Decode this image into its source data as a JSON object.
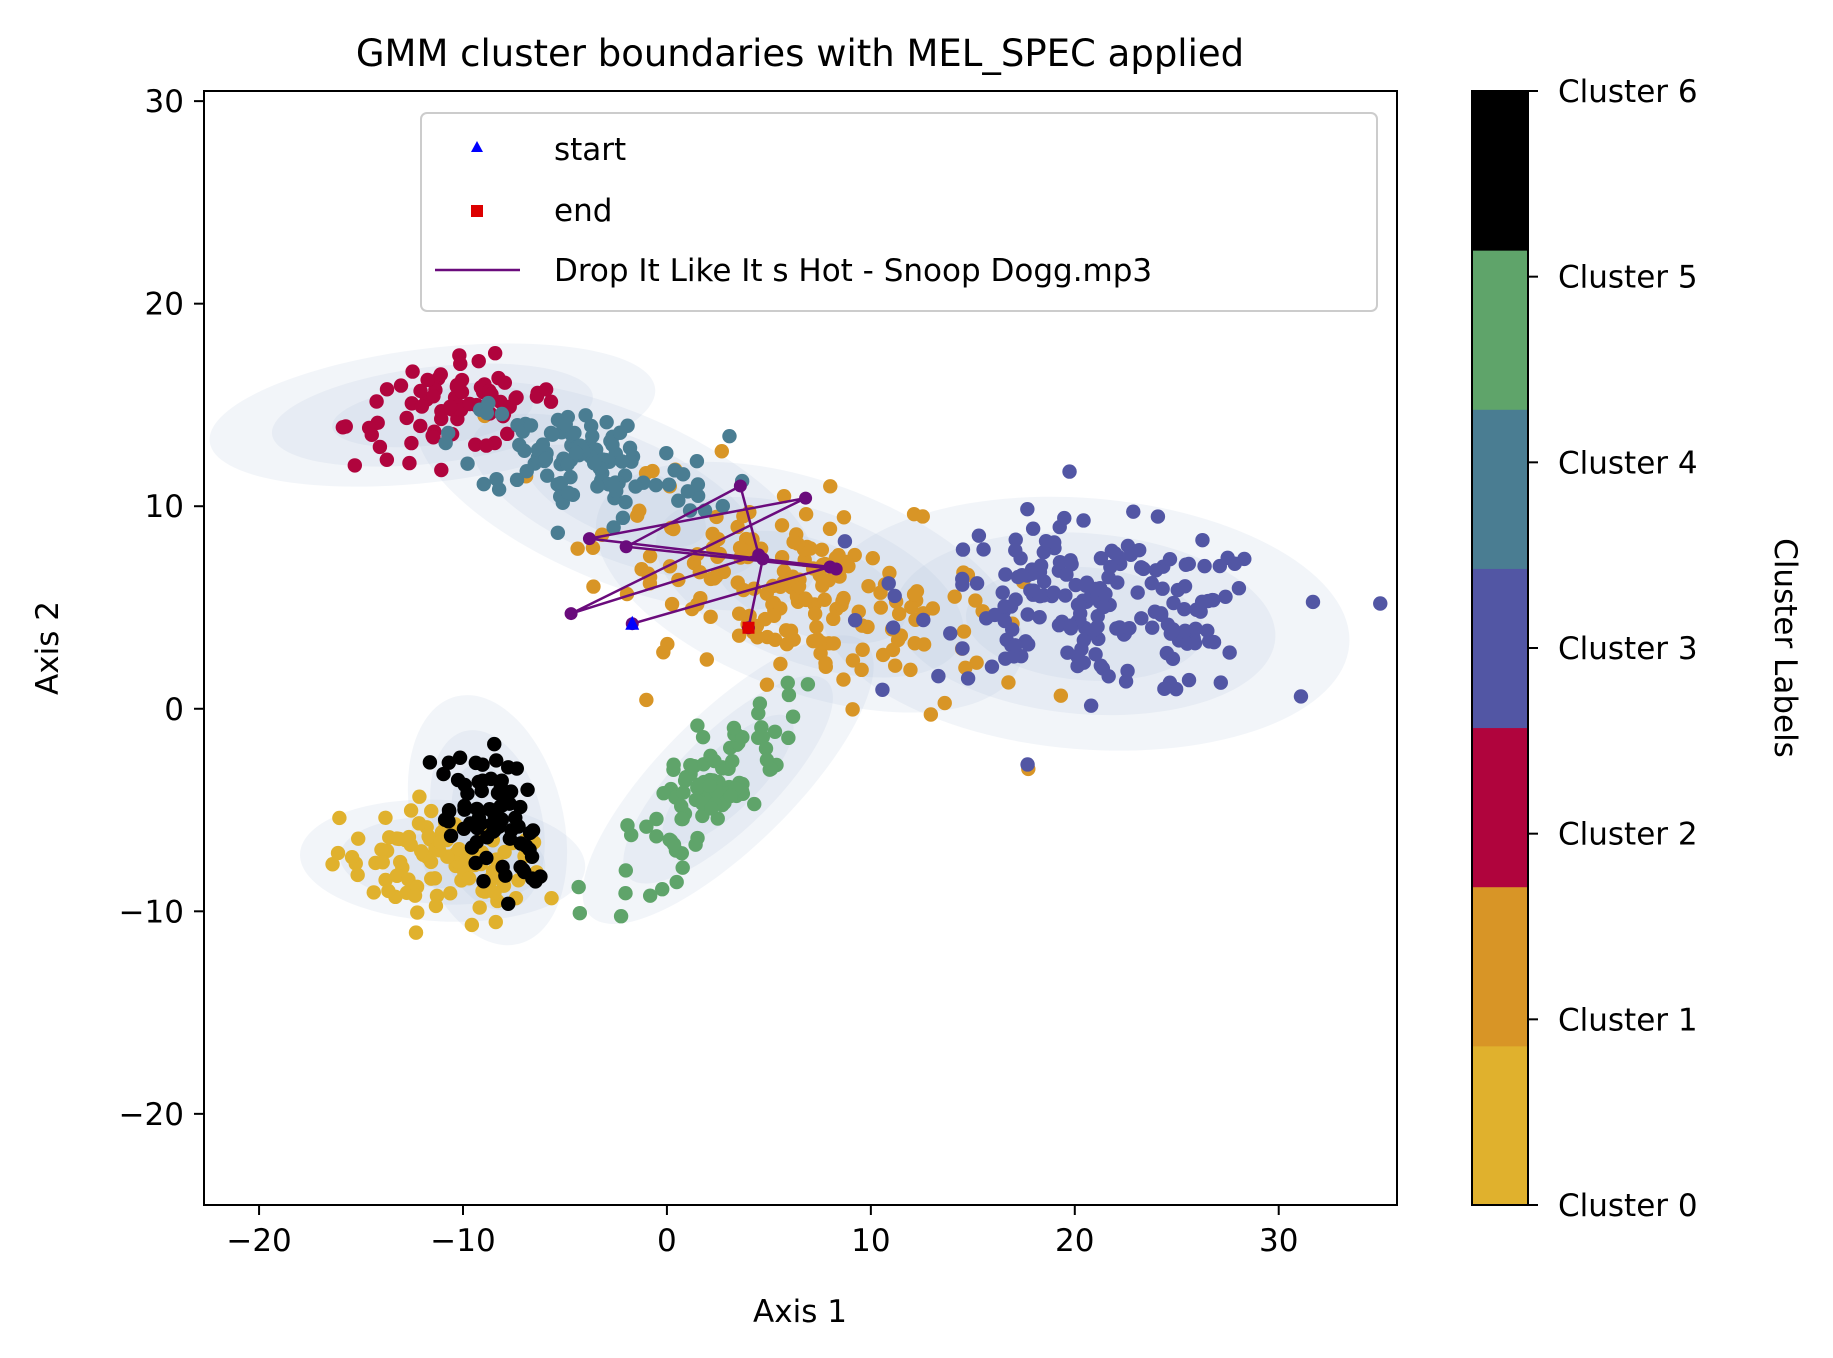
{
  "chart_data": {
    "type": "scatter",
    "title": "GMM cluster boundaries with MEL_SPEC applied",
    "xlabel": "Axis 1",
    "ylabel": "Axis 2",
    "xlim": [
      -22.7,
      35.8
    ],
    "ylim": [
      -24.5,
      30.5
    ],
    "xticks": [
      -20,
      -10,
      0,
      10,
      20,
      30
    ],
    "yticks": [
      -20,
      -10,
      0,
      10,
      20,
      30
    ],
    "xtick_labels": [
      "−20",
      "−10",
      "0",
      "10",
      "20",
      "30"
    ],
    "ytick_labels": [
      "−20",
      "−10",
      "0",
      "10",
      "20",
      "30"
    ],
    "grid": false,
    "legend_position": "top-center",
    "legend": [
      {
        "label": "start",
        "marker": "triangle",
        "color": "#0000ff"
      },
      {
        "label": "end",
        "marker": "square",
        "color": "#dd0000"
      },
      {
        "label": "Drop It Like It s Hot - Snoop Dogg.mp3",
        "marker": "line",
        "color": "#6a0b7c"
      }
    ],
    "colorbar": {
      "label": "Cluster Labels",
      "ticks": [
        "Cluster 0",
        "Cluster 1",
        "Cluster 2",
        "Cluster 3",
        "Cluster 4",
        "Cluster 5",
        "Cluster 6"
      ],
      "colors": [
        "#e0b12d",
        "#d89526",
        "#b0043d",
        "#5256a4",
        "#4a7d92",
        "#5fa46a",
        "#000000"
      ]
    },
    "clusters": [
      {
        "name": "Cluster 0",
        "color": "#e0b12d",
        "cx": -11,
        "cy": -7.8,
        "sx": 2.6,
        "sy": 1.3,
        "rot": -0.15,
        "n": 95
      },
      {
        "name": "Cluster 1",
        "color": "#d89526",
        "cx": 6.5,
        "cy": 6.0,
        "sx": 5.0,
        "sy": 2.3,
        "rot": -0.35,
        "n": 190
      },
      {
        "name": "Cluster 2",
        "color": "#b0043d",
        "cx": -10.5,
        "cy": 14.8,
        "sx": 2.6,
        "sy": 1.1,
        "rot": 0.15,
        "n": 75
      },
      {
        "name": "Cluster 3",
        "color": "#5256a4",
        "cx": 21,
        "cy": 5.0,
        "sx": 4.4,
        "sy": 2.0,
        "rot": -0.1,
        "n": 190
      },
      {
        "name": "Cluster 4",
        "color": "#4a7d92",
        "cx": -4.0,
        "cy": 12.2,
        "sx": 3.3,
        "sy": 1.3,
        "rot": -0.2,
        "n": 110
      },
      {
        "name": "Cluster 5",
        "color": "#5fa46a",
        "cx": 2.0,
        "cy": -4.0,
        "sx": 3.0,
        "sy": 1.1,
        "rot": 0.8,
        "n": 100
      },
      {
        "name": "Cluster 6",
        "color": "#000000",
        "cx": -8.8,
        "cy": -5.5,
        "sx": 1.0,
        "sy": 1.9,
        "rot": 0.35,
        "n": 75
      }
    ],
    "gmm_ellipses": [
      {
        "cx": -11.5,
        "cy": 14.5,
        "rx": 11,
        "ry": 3.3,
        "rot": 0.12
      },
      {
        "cx": -2.5,
        "cy": 10.5,
        "rx": 10.5,
        "ry": 4.2,
        "rot": -0.4
      },
      {
        "cx": 7.0,
        "cy": 6.0,
        "rx": 11,
        "ry": 5.2,
        "rot": -0.35
      },
      {
        "cx": 20.5,
        "cy": 4.2,
        "rx": 13,
        "ry": 6.2,
        "rot": -0.08
      },
      {
        "cx": 3.0,
        "cy": -3.5,
        "rx": 9.5,
        "ry": 3.3,
        "rot": 0.78
      },
      {
        "cx": -8.8,
        "cy": -5.5,
        "rx": 3.7,
        "ry": 6.3,
        "rot": 0.25
      },
      {
        "cx": -11.0,
        "cy": -7.5,
        "rx": 7.0,
        "ry": 3.0,
        "rot": -0.05
      }
    ],
    "track_path": {
      "name": "Drop It Like It s Hot - Snoop Dogg.mp3",
      "x": [
        -1.7,
        8.0,
        -3.8,
        6.8,
        -4.7,
        4.5,
        3.6,
        -2.0,
        8.3,
        4.7,
        4.0
      ],
      "y": [
        4.2,
        7.0,
        8.4,
        10.4,
        4.7,
        7.6,
        11.0,
        8.0,
        6.9,
        7.4,
        4.0
      ],
      "start": {
        "x": -1.7,
        "y": 4.2
      },
      "end": {
        "x": 4.0,
        "y": 4.0
      }
    }
  }
}
